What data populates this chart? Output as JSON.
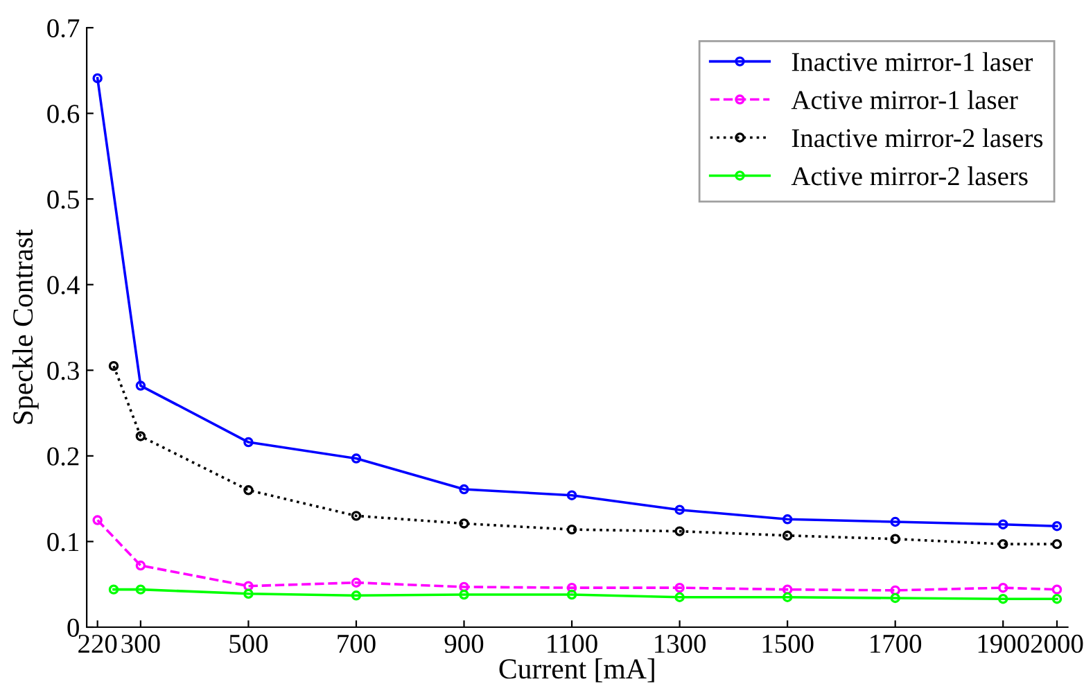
{
  "chart_data": {
    "type": "line",
    "xlabel": "Current [mA]",
    "ylabel": "Speckle Contrast",
    "xlim": [
      200,
      2020
    ],
    "xticks": [
      220,
      300,
      500,
      700,
      900,
      1100,
      1300,
      1500,
      1700,
      1900,
      2000
    ],
    "ylim": [
      0,
      0.7
    ],
    "yticks": [
      0,
      0.1,
      0.2,
      0.3,
      0.4,
      0.5,
      0.6,
      0.7
    ],
    "grid": false,
    "legend": "top right",
    "marker": "circle",
    "series": [
      {
        "name": "Inactive mirror-1 laser",
        "color": "#0000ff",
        "line_style": "solid",
        "x": [
          220,
          300,
          500,
          700,
          900,
          1100,
          1300,
          1500,
          1700,
          1900,
          2000
        ],
        "values": [
          0.641,
          0.282,
          0.216,
          0.197,
          0.161,
          0.154,
          0.137,
          0.126,
          0.123,
          0.12,
          0.118
        ]
      },
      {
        "name": "Active mirror-1 laser",
        "color": "#ff00ff",
        "line_style": "dashed",
        "x": [
          220,
          300,
          500,
          700,
          900,
          1100,
          1300,
          1500,
          1700,
          1900,
          2000
        ],
        "values": [
          0.125,
          0.072,
          0.048,
          0.052,
          0.047,
          0.046,
          0.046,
          0.044,
          0.043,
          0.046,
          0.044
        ]
      },
      {
        "name": "Inactive mirror-2 lasers",
        "color": "#000000",
        "line_style": "dotted",
        "x": [
          250,
          300,
          500,
          700,
          900,
          1100,
          1300,
          1500,
          1700,
          1900,
          2000
        ],
        "values": [
          0.305,
          0.223,
          0.16,
          0.13,
          0.121,
          0.114,
          0.112,
          0.107,
          0.103,
          0.097,
          0.097
        ]
      },
      {
        "name": "Active mirror-2 lasers",
        "color": "#00ff00",
        "line_style": "solid",
        "x": [
          250,
          300,
          500,
          700,
          900,
          1100,
          1300,
          1500,
          1700,
          1900,
          2000
        ],
        "values": [
          0.044,
          0.044,
          0.039,
          0.037,
          0.038,
          0.038,
          0.035,
          0.035,
          0.034,
          0.033,
          0.033
        ]
      }
    ]
  }
}
